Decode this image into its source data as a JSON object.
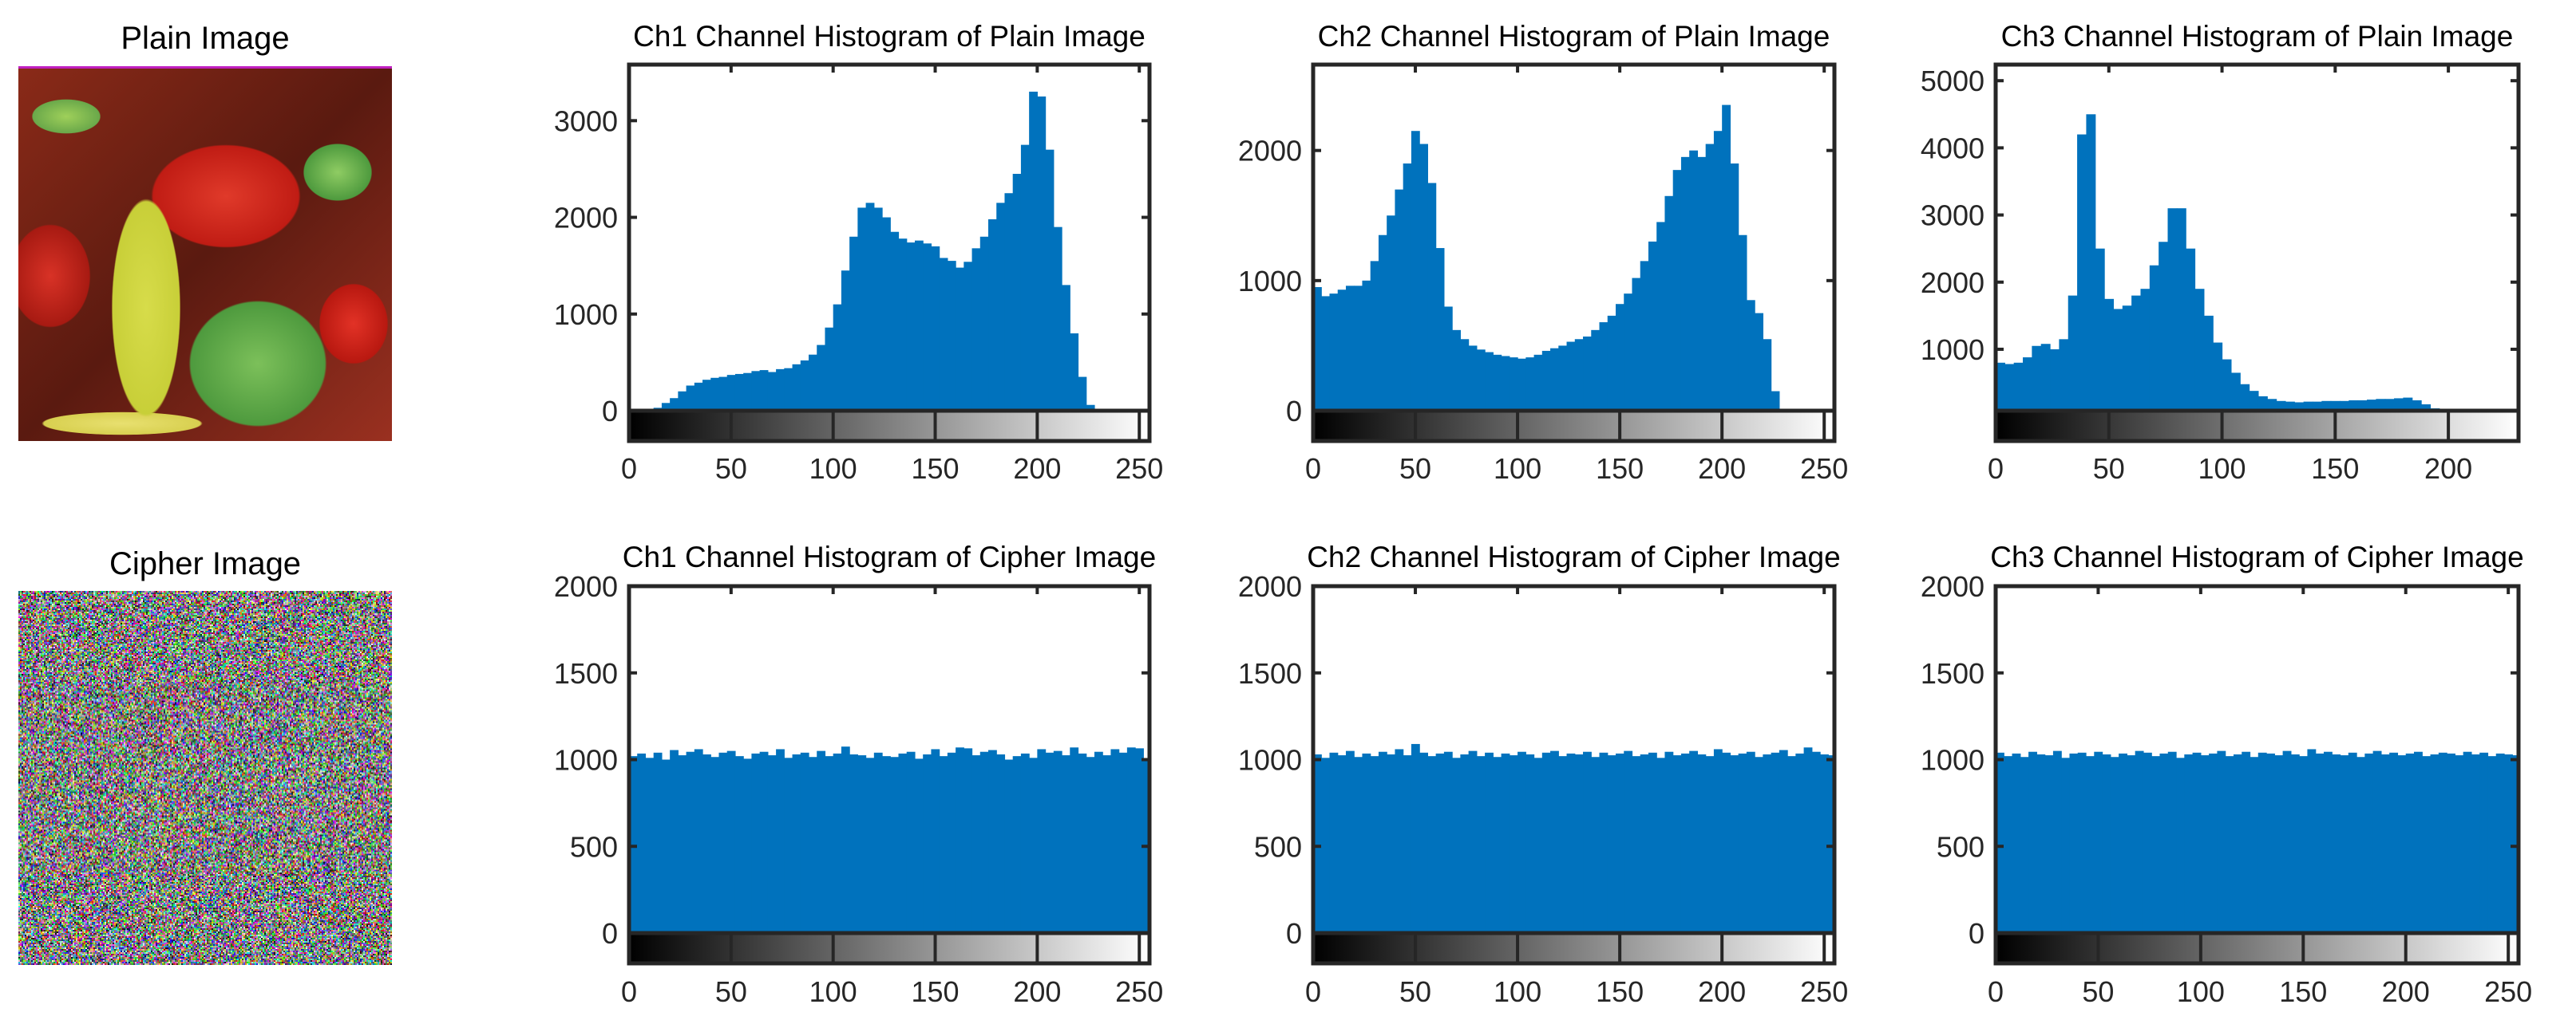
{
  "images": {
    "plain_title": "Plain Image",
    "cipher_title": "Cipher Image"
  },
  "chart_data": [
    {
      "type": "bar",
      "title": "Ch1 Channel Histogram of Plain Image",
      "xlim": [
        0,
        255
      ],
      "ylim": [
        0,
        3580
      ],
      "xticks": [
        "0",
        "50",
        "100",
        "150",
        "200",
        "250"
      ],
      "yticks": [
        "0",
        "1000",
        "2000",
        "3000"
      ],
      "bin_width": 4,
      "values": [
        0,
        0,
        5,
        30,
        80,
        130,
        200,
        260,
        290,
        320,
        340,
        350,
        370,
        380,
        390,
        410,
        420,
        400,
        430,
        440,
        480,
        520,
        580,
        680,
        860,
        1100,
        1450,
        1800,
        2100,
        2150,
        2100,
        2000,
        1850,
        1780,
        1740,
        1760,
        1730,
        1700,
        1580,
        1550,
        1480,
        1540,
        1680,
        1800,
        1980,
        2150,
        2250,
        2450,
        2750,
        3300,
        3250,
        2700,
        1900,
        1300,
        800,
        350,
        60,
        0,
        0,
        0,
        0,
        0,
        0,
        0
      ]
    },
    {
      "type": "bar",
      "title": "Ch2 Channel Histogram of Plain Image",
      "xlim": [
        0,
        255
      ],
      "ylim": [
        0,
        2660
      ],
      "xticks": [
        "0",
        "50",
        "100",
        "150",
        "200",
        "250"
      ],
      "yticks": [
        "0",
        "1000",
        "2000"
      ],
      "bin_width": 4,
      "values": [
        950,
        880,
        900,
        930,
        960,
        960,
        1000,
        1150,
        1350,
        1500,
        1700,
        1900,
        2150,
        2050,
        1750,
        1250,
        800,
        620,
        550,
        500,
        470,
        450,
        430,
        420,
        410,
        400,
        410,
        430,
        460,
        480,
        500,
        530,
        550,
        570,
        620,
        680,
        730,
        820,
        900,
        1020,
        1150,
        1300,
        1450,
        1650,
        1850,
        1950,
        2000,
        1950,
        2050,
        2150,
        2350,
        1900,
        1350,
        850,
        750,
        550,
        150,
        10,
        0,
        0,
        0,
        0,
        0,
        0
      ]
    },
    {
      "type": "bar",
      "title": "Ch3 Channel Histogram of Plain Image",
      "xlim": [
        0,
        231
      ],
      "ylim": [
        85,
        5240
      ],
      "xticks": [
        "0",
        "50",
        "100",
        "150",
        "200"
      ],
      "yticks": [
        "1000",
        "2000",
        "3000",
        "4000",
        "5000"
      ],
      "bin_width": 4,
      "values": [
        800,
        780,
        800,
        880,
        1050,
        1080,
        1000,
        1150,
        1800,
        4200,
        4500,
        2500,
        1750,
        1600,
        1650,
        1800,
        1900,
        2250,
        2600,
        3100,
        3100,
        2500,
        1900,
        1500,
        1100,
        850,
        650,
        480,
        380,
        300,
        260,
        230,
        220,
        210,
        220,
        220,
        230,
        230,
        230,
        240,
        240,
        250,
        260,
        260,
        270,
        280,
        240,
        180,
        120,
        90,
        80,
        70,
        40,
        0,
        0,
        0,
        0,
        0
      ]
    },
    {
      "type": "bar",
      "title": "Ch1 Channel Histogram of Cipher Image",
      "xlim": [
        0,
        255
      ],
      "ylim": [
        0,
        2000
      ],
      "xticks": [
        "0",
        "50",
        "100",
        "150",
        "200",
        "250"
      ],
      "yticks": [
        "0",
        "500",
        "1000",
        "1500",
        "2000"
      ],
      "bin_width": 4,
      "values": [
        1020,
        1035,
        1010,
        1040,
        1000,
        1055,
        1025,
        1045,
        1060,
        1030,
        1015,
        1040,
        1050,
        1020,
        1005,
        1035,
        1045,
        1025,
        1060,
        1010,
        1030,
        1040,
        1015,
        1050,
        1020,
        1035,
        1075,
        1030,
        1025,
        1010,
        1040,
        1020,
        1015,
        1035,
        1045,
        1005,
        1030,
        1060,
        1020,
        1040,
        1070,
        1065,
        1025,
        1045,
        1055,
        1030,
        1000,
        1020,
        1035,
        1010,
        1060,
        1040,
        1050,
        1025,
        1070,
        1035,
        1015,
        1045,
        1025,
        1060,
        1040,
        1070,
        1065,
        1000
      ]
    },
    {
      "type": "bar",
      "title": "Ch2 Channel Histogram of Cipher Image",
      "xlim": [
        0,
        255
      ],
      "ylim": [
        0,
        2000
      ],
      "xticks": [
        "0",
        "50",
        "100",
        "150",
        "200",
        "250"
      ],
      "yticks": [
        "0",
        "500",
        "1000",
        "1500",
        "2000"
      ],
      "bin_width": 4,
      "values": [
        1030,
        1010,
        1040,
        1025,
        1050,
        1015,
        1035,
        1020,
        1045,
        1030,
        1060,
        1025,
        1090,
        1040,
        1020,
        1035,
        1045,
        1010,
        1030,
        1050,
        1020,
        1040,
        1015,
        1035,
        1025,
        1045,
        1030,
        1010,
        1040,
        1050,
        1020,
        1035,
        1030,
        1045,
        1015,
        1040,
        1025,
        1035,
        1050,
        1020,
        1030,
        1040,
        1010,
        1045,
        1025,
        1035,
        1050,
        1030,
        1020,
        1060,
        1040,
        1025,
        1035,
        1045,
        1015,
        1030,
        1040,
        1055,
        1020,
        1035,
        1070,
        1045,
        1030,
        1025
      ]
    },
    {
      "type": "bar",
      "title": "Ch3 Channel Histogram of Cipher Image",
      "xlim": [
        0,
        255
      ],
      "ylim": [
        0,
        2000
      ],
      "xticks": [
        "0",
        "50",
        "100",
        "150",
        "200",
        "250"
      ],
      "yticks": [
        "0",
        "500",
        "1000",
        "1500",
        "2000"
      ],
      "bin_width": 4,
      "values": [
        1040,
        1020,
        1035,
        1015,
        1045,
        1030,
        1025,
        1050,
        1010,
        1035,
        1040,
        1020,
        1045,
        1030,
        1015,
        1035,
        1025,
        1050,
        1040,
        1020,
        1035,
        1045,
        1010,
        1030,
        1040,
        1025,
        1035,
        1050,
        1020,
        1030,
        1045,
        1015,
        1040,
        1035,
        1025,
        1050,
        1030,
        1020,
        1060,
        1035,
        1045,
        1030,
        1025,
        1040,
        1015,
        1035,
        1050,
        1030,
        1040,
        1025,
        1035,
        1045,
        1020,
        1030,
        1040,
        1035,
        1025,
        1045,
        1030,
        1040,
        1020,
        1035,
        1030,
        1025
      ]
    }
  ]
}
